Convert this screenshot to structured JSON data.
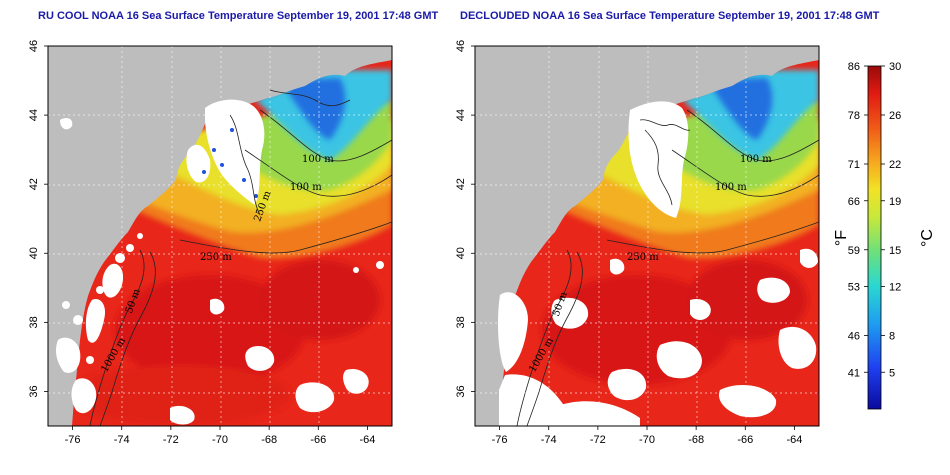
{
  "panels": [
    {
      "title": "RU COOL NOAA 16 Sea Surface Temperature September 19, 2001 17:48 GMT",
      "contour_labels": [
        "100 m",
        "100 m",
        "250 m",
        "250 m",
        "50 m",
        "1000 m"
      ]
    },
    {
      "title": "DECLOUDED NOAA 16 Sea Surface Temperature September 19, 2001 17:48 GMT",
      "contour_labels": [
        "100 m",
        "100 m",
        "250 m",
        "50 m",
        "1000 m"
      ]
    }
  ],
  "axes": {
    "x_ticks": [
      "-76",
      "-74",
      "-72",
      "-70",
      "-68",
      "-66",
      "-64"
    ],
    "y_ticks": [
      "36",
      "38",
      "40",
      "42",
      "44",
      "46"
    ],
    "lon_range": [
      -77,
      -63
    ],
    "lat_range": [
      35,
      46
    ]
  },
  "colorbar": {
    "fahrenheit_ticks": [
      "86",
      "78",
      "71",
      "66",
      "59",
      "53",
      "46",
      "41"
    ],
    "celsius_ticks": [
      "30",
      "26",
      "22",
      "19",
      "15",
      "12",
      "8",
      "5"
    ],
    "left_unit": "°F",
    "right_unit": "°C",
    "range_c": [
      2,
      30
    ]
  },
  "colors": {
    "land": "#bdbdbd",
    "cloud": "#ffffff",
    "warm": "#e8241a",
    "hot": "#d41612",
    "orange": "#f08a1e",
    "yellow": "#e8e02a",
    "green": "#88d84a",
    "cyan": "#32c8e0",
    "blue": "#1e5ad8",
    "title": "#1a1aa8"
  }
}
